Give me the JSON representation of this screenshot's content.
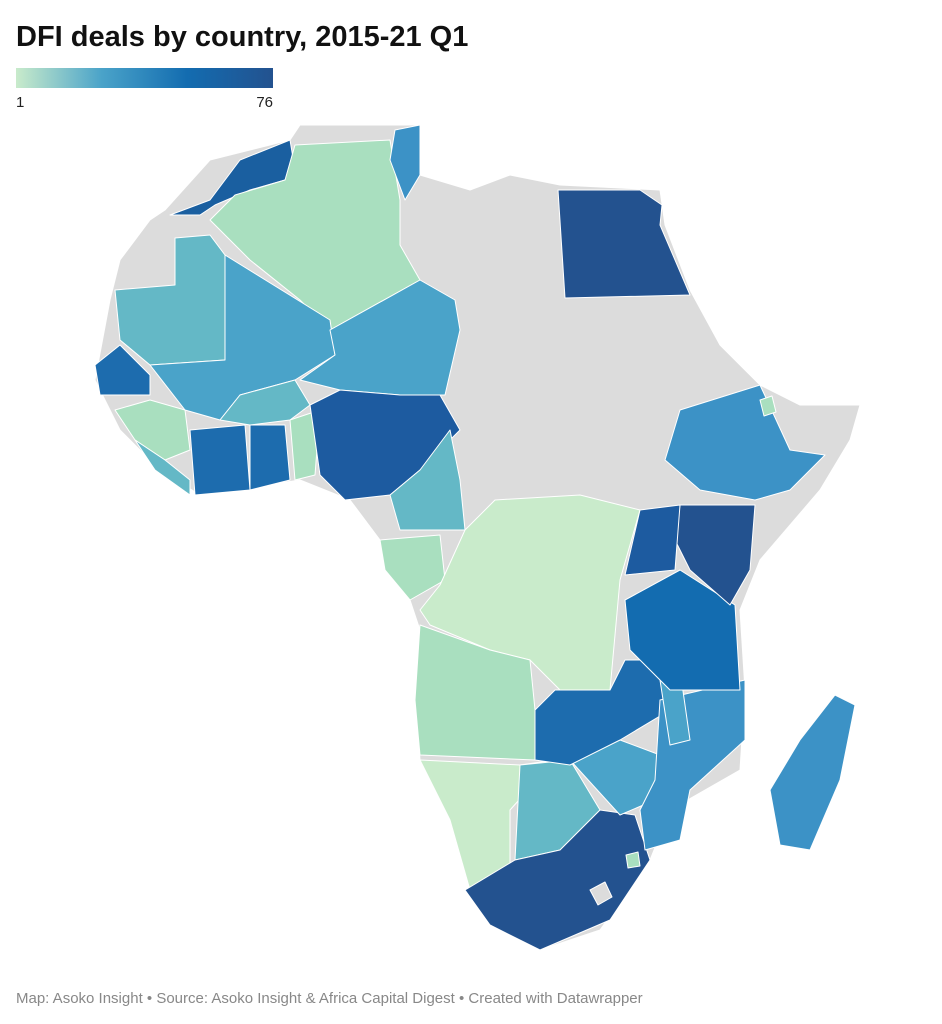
{
  "header": {
    "title": "DFI deals by country, 2015-21 Q1"
  },
  "legend": {
    "min": 1,
    "max": 76,
    "colors": [
      "#c9ebcb",
      "#4aa3c9",
      "#136cb0",
      "#23528f"
    ]
  },
  "footer": "Map: Asoko Insight • Source: Asoko Insight & Africa Capital Digest • Created with Datawrapper"
}
